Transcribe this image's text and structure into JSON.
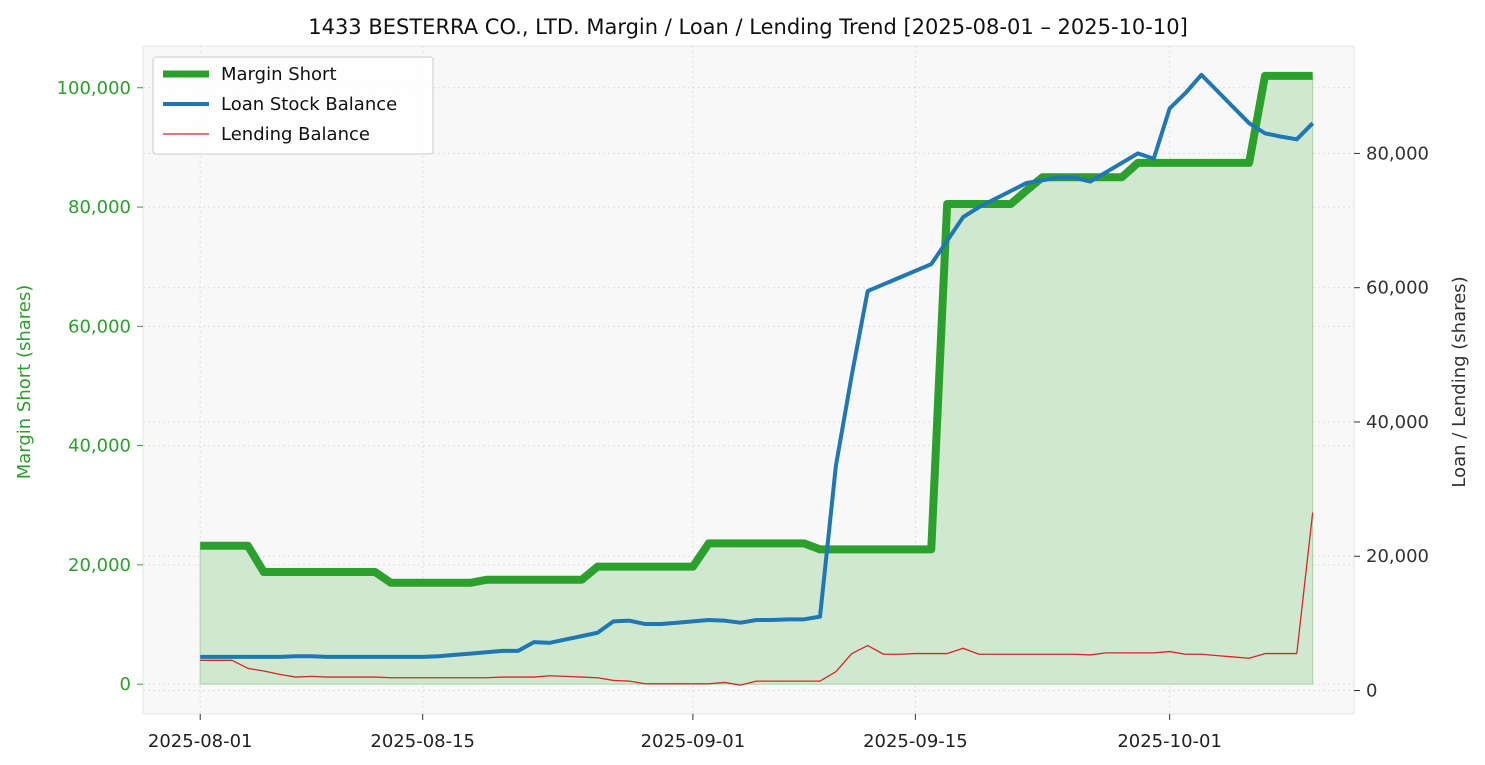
{
  "chart_data": {
    "type": "line",
    "title": "1433 BESTERRA CO., LTD. Margin / Loan / Lending Trend [2025-08-01 – 2025-10-10]",
    "ylabel_left": "Margin Short (shares)",
    "ylabel_right": "Loan / Lending (shares)",
    "x_ticks": [
      "2025-08-01",
      "2025-08-15",
      "2025-09-01",
      "2025-09-15",
      "2025-10-01"
    ],
    "x_tick_days": [
      0,
      14,
      31,
      45,
      61
    ],
    "xlim_days": [
      -3.6,
      72.6
    ],
    "ylim_left": [
      -5000,
      107000
    ],
    "ylim_right": [
      -3500,
      96000
    ],
    "y_ticks_left": [
      0,
      20000,
      40000,
      60000,
      80000,
      100000
    ],
    "y_tick_labels_left": [
      "0",
      "20,000",
      "40,000",
      "60,000",
      "80,000",
      "100,000"
    ],
    "y_ticks_right": [
      0,
      20000,
      40000,
      60000,
      80000
    ],
    "y_tick_labels_right": [
      "0",
      "20,000",
      "40,000",
      "60,000",
      "80,000"
    ],
    "legend": [
      "Margin Short",
      "Loan Stock Balance",
      "Lending Balance"
    ],
    "legend_position": "upper-left",
    "colors": {
      "margin_short": "#2ca02c",
      "margin_fill": "#cfe8cf",
      "loan": "#1f77b4",
      "lending": "#d62728",
      "plot_bg": "#f8f8f8",
      "left_axis_text": "#2ca02c",
      "right_axis_text": "#333333"
    },
    "series": [
      {
        "name": "Margin Short",
        "axis": "left",
        "points": [
          [
            0,
            23200
          ],
          [
            1,
            23200
          ],
          [
            2,
            23200
          ],
          [
            3,
            23200
          ],
          [
            4,
            18800
          ],
          [
            5,
            18800
          ],
          [
            6,
            18800
          ],
          [
            7,
            18800
          ],
          [
            8,
            18800
          ],
          [
            9,
            18800
          ],
          [
            10,
            18800
          ],
          [
            11,
            18800
          ],
          [
            12,
            17000
          ],
          [
            13,
            17000
          ],
          [
            14,
            17000
          ],
          [
            15,
            17000
          ],
          [
            16,
            17000
          ],
          [
            17,
            17000
          ],
          [
            18,
            17500
          ],
          [
            19,
            17500
          ],
          [
            20,
            17500
          ],
          [
            21,
            17500
          ],
          [
            22,
            17500
          ],
          [
            23,
            17500
          ],
          [
            24,
            17500
          ],
          [
            25,
            19700
          ],
          [
            26,
            19700
          ],
          [
            27,
            19700
          ],
          [
            28,
            19700
          ],
          [
            29,
            19700
          ],
          [
            30,
            19700
          ],
          [
            31,
            19700
          ],
          [
            32,
            23600
          ],
          [
            33,
            23600
          ],
          [
            34,
            23600
          ],
          [
            35,
            23600
          ],
          [
            36,
            23600
          ],
          [
            37,
            23600
          ],
          [
            38,
            23600
          ],
          [
            39,
            22600
          ],
          [
            40,
            22600
          ],
          [
            41,
            22600
          ],
          [
            42,
            22600
          ],
          [
            43,
            22600
          ],
          [
            44,
            22600
          ],
          [
            45,
            22600
          ],
          [
            46,
            22600
          ],
          [
            47,
            80500
          ],
          [
            48,
            80500
          ],
          [
            49,
            80500
          ],
          [
            50,
            80500
          ],
          [
            51,
            80500
          ],
          [
            52,
            82800
          ],
          [
            53,
            85000
          ],
          [
            54,
            85000
          ],
          [
            55,
            85000
          ],
          [
            56,
            85000
          ],
          [
            57,
            85000
          ],
          [
            58,
            85000
          ],
          [
            59,
            87400
          ],
          [
            60,
            87400
          ],
          [
            61,
            87400
          ],
          [
            62,
            87400
          ],
          [
            63,
            87400
          ],
          [
            64,
            87400
          ],
          [
            65,
            87400
          ],
          [
            66,
            87400
          ],
          [
            67,
            102000
          ],
          [
            68,
            102000
          ],
          [
            69,
            102000
          ],
          [
            70,
            102000
          ]
        ]
      },
      {
        "name": "Loan Stock Balance",
        "axis": "right",
        "points": [
          [
            0,
            5000
          ],
          [
            2,
            5000
          ],
          [
            4,
            5000
          ],
          [
            5,
            5000
          ],
          [
            6,
            5100
          ],
          [
            7,
            5100
          ],
          [
            8,
            5000
          ],
          [
            9,
            5000
          ],
          [
            10,
            5000
          ],
          [
            11,
            5000
          ],
          [
            12,
            5000
          ],
          [
            13,
            5000
          ],
          [
            14,
            5000
          ],
          [
            15,
            5100
          ],
          [
            16,
            5300
          ],
          [
            17,
            5500
          ],
          [
            18,
            5700
          ],
          [
            19,
            5900
          ],
          [
            20,
            5900
          ],
          [
            21,
            7200
          ],
          [
            22,
            7100
          ],
          [
            23,
            7600
          ],
          [
            24,
            8100
          ],
          [
            25,
            8600
          ],
          [
            26,
            10300
          ],
          [
            27,
            10400
          ],
          [
            28,
            9900
          ],
          [
            29,
            9900
          ],
          [
            30,
            10100
          ],
          [
            31,
            10300
          ],
          [
            32,
            10500
          ],
          [
            33,
            10400
          ],
          [
            34,
            10100
          ],
          [
            35,
            10500
          ],
          [
            36,
            10500
          ],
          [
            37,
            10600
          ],
          [
            38,
            10600
          ],
          [
            39,
            11000
          ],
          [
            40,
            33500
          ],
          [
            41,
            47000
          ],
          [
            42,
            59500
          ],
          [
            43,
            60500
          ],
          [
            44,
            61500
          ],
          [
            45,
            62500
          ],
          [
            46,
            63500
          ],
          [
            47,
            67000
          ],
          [
            48,
            70500
          ],
          [
            49,
            72000
          ],
          [
            50,
            73200
          ],
          [
            51,
            74400
          ],
          [
            52,
            75600
          ],
          [
            53,
            76000
          ],
          [
            54,
            76400
          ],
          [
            55,
            76400
          ],
          [
            56,
            75800
          ],
          [
            57,
            77200
          ],
          [
            58,
            78600
          ],
          [
            59,
            80000
          ],
          [
            60,
            79200
          ],
          [
            61,
            86700
          ],
          [
            62,
            89000
          ],
          [
            63,
            91700
          ],
          [
            64,
            89300
          ],
          [
            65,
            86900
          ],
          [
            66,
            84500
          ],
          [
            67,
            83000
          ],
          [
            68,
            82500
          ],
          [
            69,
            82100
          ],
          [
            70,
            84500
          ]
        ]
      },
      {
        "name": "Lending Balance",
        "axis": "right",
        "points": [
          [
            0,
            4500
          ],
          [
            1,
            4500
          ],
          [
            2,
            4500
          ],
          [
            3,
            3300
          ],
          [
            4,
            2900
          ],
          [
            5,
            2400
          ],
          [
            6,
            2000
          ],
          [
            7,
            2100
          ],
          [
            8,
            2000
          ],
          [
            9,
            2000
          ],
          [
            10,
            2000
          ],
          [
            11,
            2000
          ],
          [
            12,
            1900
          ],
          [
            13,
            1900
          ],
          [
            14,
            1900
          ],
          [
            15,
            1900
          ],
          [
            16,
            1900
          ],
          [
            17,
            1900
          ],
          [
            18,
            1900
          ],
          [
            19,
            2000
          ],
          [
            20,
            2000
          ],
          [
            21,
            2000
          ],
          [
            22,
            2200
          ],
          [
            23,
            2100
          ],
          [
            24,
            2000
          ],
          [
            25,
            1900
          ],
          [
            26,
            1500
          ],
          [
            27,
            1400
          ],
          [
            28,
            1000
          ],
          [
            29,
            1000
          ],
          [
            30,
            1000
          ],
          [
            31,
            1000
          ],
          [
            32,
            1000
          ],
          [
            33,
            1200
          ],
          [
            34,
            800
          ],
          [
            35,
            1400
          ],
          [
            36,
            1400
          ],
          [
            37,
            1400
          ],
          [
            38,
            1400
          ],
          [
            39,
            1400
          ],
          [
            40,
            2800
          ],
          [
            41,
            5500
          ],
          [
            42,
            6700
          ],
          [
            43,
            5400
          ],
          [
            44,
            5400
          ],
          [
            45,
            5500
          ],
          [
            46,
            5500
          ],
          [
            47,
            5500
          ],
          [
            48,
            6300
          ],
          [
            49,
            5400
          ],
          [
            50,
            5400
          ],
          [
            51,
            5400
          ],
          [
            52,
            5400
          ],
          [
            53,
            5400
          ],
          [
            54,
            5400
          ],
          [
            55,
            5400
          ],
          [
            56,
            5300
          ],
          [
            57,
            5600
          ],
          [
            58,
            5600
          ],
          [
            59,
            5600
          ],
          [
            60,
            5600
          ],
          [
            61,
            5800
          ],
          [
            62,
            5400
          ],
          [
            63,
            5400
          ],
          [
            64,
            5200
          ],
          [
            65,
            5000
          ],
          [
            66,
            4800
          ],
          [
            67,
            5500
          ],
          [
            68,
            5500
          ],
          [
            69,
            5500
          ],
          [
            70,
            26500
          ]
        ]
      }
    ]
  }
}
